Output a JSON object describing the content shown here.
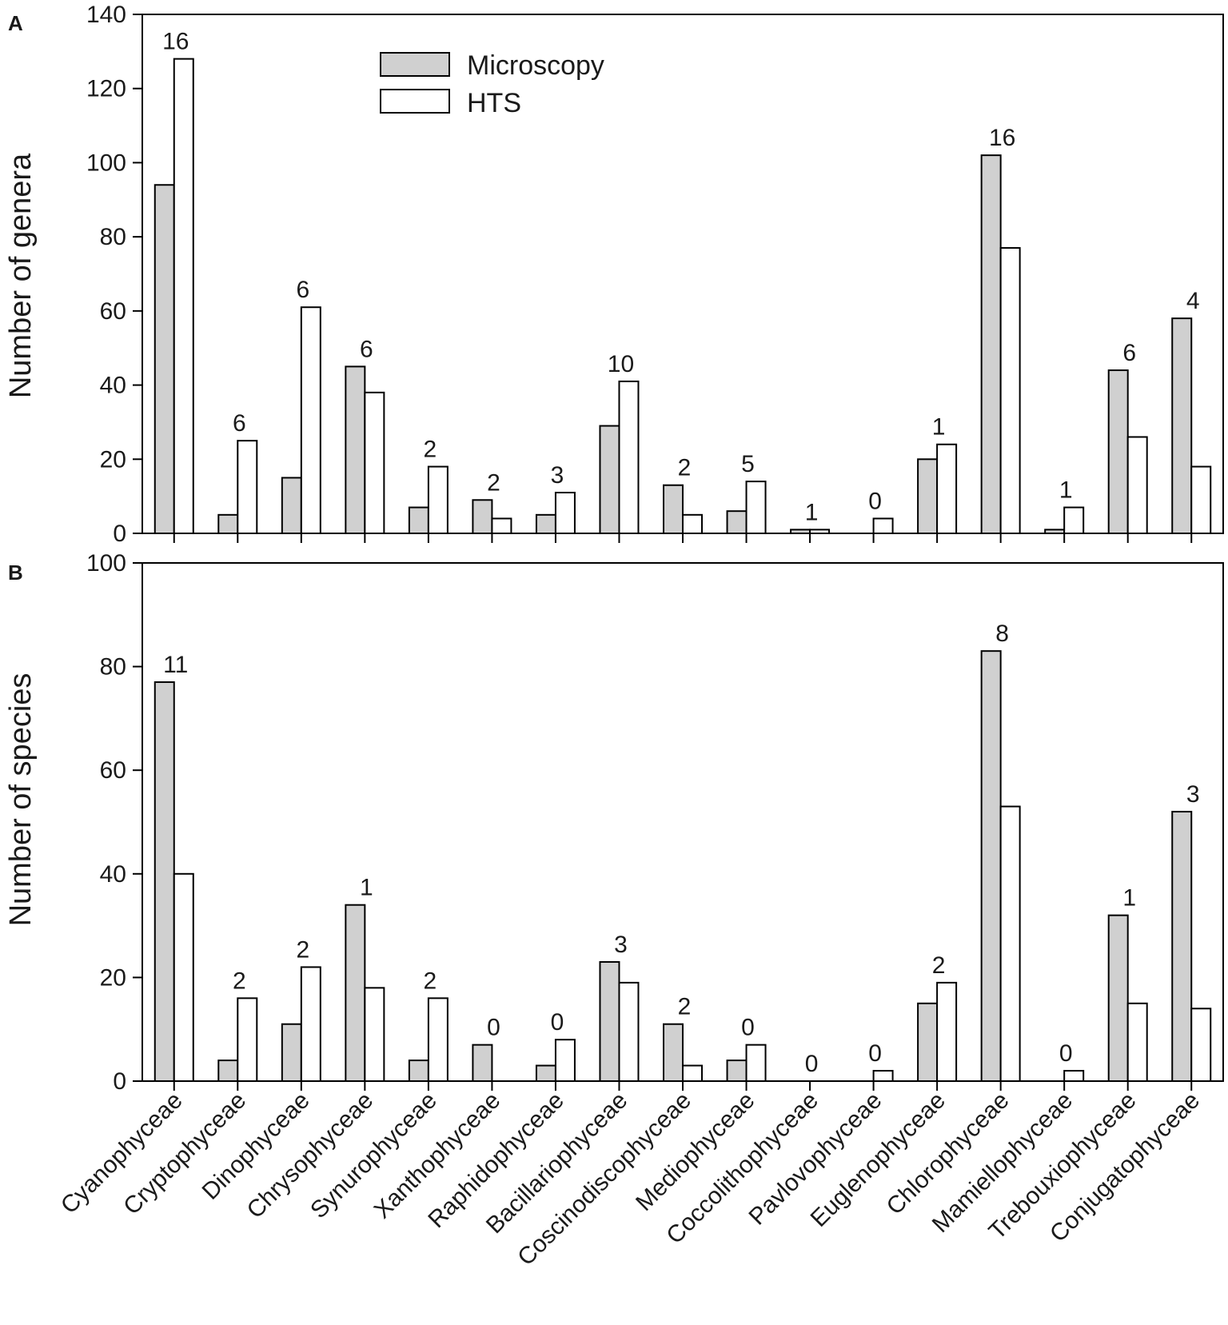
{
  "chart_data": [
    {
      "type": "bar",
      "panel": "A",
      "title": "",
      "xlabel": "",
      "ylabel": "Number of genera",
      "ylim": [
        0,
        140
      ],
      "yticks": [
        0,
        20,
        40,
        60,
        80,
        100,
        120,
        140
      ],
      "legend": "top-center",
      "categories": [
        "Cyanophyceae",
        "Cryptophyceae",
        "Dinophyceae",
        "Chrysophyceae",
        "Synurophyceae",
        "Xanthophyceae",
        "Raphidophyceae",
        "Bacillariophyceae",
        "Coscinodiscophyceae",
        "Mediophyceae",
        "Coccolithophyceae",
        "Pavlovophyceae",
        "Euglenophyceae",
        "Chlorophyceae",
        "Mamiellophyceae",
        "Trebouxiophyceae",
        "Conjugatophyceae"
      ],
      "series": [
        {
          "name": "Microscopy",
          "color": "#d0d0d0",
          "values": [
            94,
            5,
            15,
            45,
            7,
            9,
            5,
            29,
            13,
            6,
            1,
            0,
            20,
            102,
            1,
            44,
            58
          ]
        },
        {
          "name": "HTS",
          "color": "#ffffff",
          "values": [
            128,
            25,
            61,
            38,
            18,
            4,
            11,
            41,
            5,
            14,
            1,
            4,
            24,
            77,
            7,
            26,
            18
          ]
        }
      ],
      "annotations": [
        "16",
        "6",
        "6",
        "6",
        "2",
        "2",
        "3",
        "10",
        "2",
        "5",
        "1",
        "0",
        "1",
        "16",
        "1",
        "6",
        "4"
      ]
    },
    {
      "type": "bar",
      "panel": "B",
      "title": "",
      "xlabel": "",
      "ylabel": "Number of species",
      "ylim": [
        0,
        100
      ],
      "yticks": [
        0,
        20,
        40,
        60,
        80,
        100
      ],
      "categories": [
        "Cyanophyceae",
        "Cryptophyceae",
        "Dinophyceae",
        "Chrysophyceae",
        "Synurophyceae",
        "Xanthophyceae",
        "Raphidophyceae",
        "Bacillariophyceae",
        "Coscinodiscophyceae",
        "Mediophyceae",
        "Coccolithophyceae",
        "Pavlovophyceae",
        "Euglenophyceae",
        "Chlorophyceae",
        "Mamiellophyceae",
        "Trebouxiophyceae",
        "Conjugatophyceae"
      ],
      "series": [
        {
          "name": "Microscopy",
          "color": "#d0d0d0",
          "values": [
            77,
            4,
            11,
            34,
            4,
            7,
            3,
            23,
            11,
            4,
            0,
            0,
            15,
            83,
            0,
            32,
            52
          ]
        },
        {
          "name": "HTS",
          "color": "#ffffff",
          "values": [
            40,
            16,
            22,
            18,
            16,
            0,
            8,
            19,
            3,
            7,
            0,
            2,
            19,
            53,
            2,
            15,
            14
          ]
        }
      ],
      "annotations": [
        "11",
        "2",
        "2",
        "1",
        "2",
        "0",
        "0",
        "3",
        "2",
        "0",
        "0",
        "0",
        "2",
        "8",
        "0",
        "1",
        "3"
      ]
    }
  ]
}
